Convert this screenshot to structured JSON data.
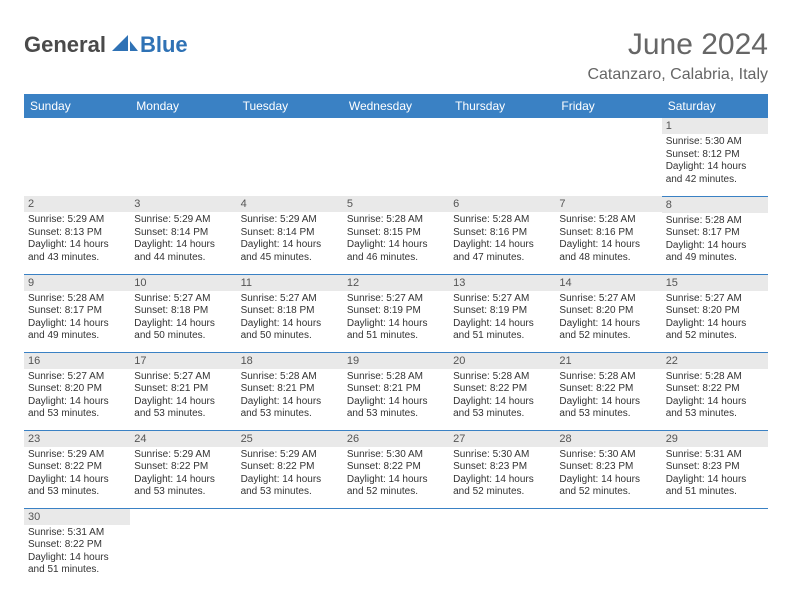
{
  "brand": {
    "part1": "General",
    "part2": "Blue"
  },
  "title": "June 2024",
  "location": "Catanzaro, Calabria, Italy",
  "colors": {
    "header_bg": "#3a81c4",
    "header_text": "#ffffff",
    "daynum_bg": "#e9e9e9",
    "cell_divider": "#3a81c4",
    "title_color": "#666666",
    "body_text": "#333333",
    "logo_dark": "#4a4a4a",
    "logo_blue": "#2f72b5"
  },
  "weekdays": [
    "Sunday",
    "Monday",
    "Tuesday",
    "Wednesday",
    "Thursday",
    "Friday",
    "Saturday"
  ],
  "labels": {
    "sunrise": "Sunrise:",
    "sunset": "Sunset:",
    "daylight": "Daylight:"
  },
  "weeks": [
    [
      null,
      null,
      null,
      null,
      null,
      null,
      {
        "d": "1",
        "sr": "5:30 AM",
        "ss": "8:12 PM",
        "dl": "14 hours and 42 minutes."
      }
    ],
    [
      {
        "d": "2",
        "sr": "5:29 AM",
        "ss": "8:13 PM",
        "dl": "14 hours and 43 minutes."
      },
      {
        "d": "3",
        "sr": "5:29 AM",
        "ss": "8:14 PM",
        "dl": "14 hours and 44 minutes."
      },
      {
        "d": "4",
        "sr": "5:29 AM",
        "ss": "8:14 PM",
        "dl": "14 hours and 45 minutes."
      },
      {
        "d": "5",
        "sr": "5:28 AM",
        "ss": "8:15 PM",
        "dl": "14 hours and 46 minutes."
      },
      {
        "d": "6",
        "sr": "5:28 AM",
        "ss": "8:16 PM",
        "dl": "14 hours and 47 minutes."
      },
      {
        "d": "7",
        "sr": "5:28 AM",
        "ss": "8:16 PM",
        "dl": "14 hours and 48 minutes."
      },
      {
        "d": "8",
        "sr": "5:28 AM",
        "ss": "8:17 PM",
        "dl": "14 hours and 49 minutes."
      }
    ],
    [
      {
        "d": "9",
        "sr": "5:28 AM",
        "ss": "8:17 PM",
        "dl": "14 hours and 49 minutes."
      },
      {
        "d": "10",
        "sr": "5:27 AM",
        "ss": "8:18 PM",
        "dl": "14 hours and 50 minutes."
      },
      {
        "d": "11",
        "sr": "5:27 AM",
        "ss": "8:18 PM",
        "dl": "14 hours and 50 minutes."
      },
      {
        "d": "12",
        "sr": "5:27 AM",
        "ss": "8:19 PM",
        "dl": "14 hours and 51 minutes."
      },
      {
        "d": "13",
        "sr": "5:27 AM",
        "ss": "8:19 PM",
        "dl": "14 hours and 51 minutes."
      },
      {
        "d": "14",
        "sr": "5:27 AM",
        "ss": "8:20 PM",
        "dl": "14 hours and 52 minutes."
      },
      {
        "d": "15",
        "sr": "5:27 AM",
        "ss": "8:20 PM",
        "dl": "14 hours and 52 minutes."
      }
    ],
    [
      {
        "d": "16",
        "sr": "5:27 AM",
        "ss": "8:20 PM",
        "dl": "14 hours and 53 minutes."
      },
      {
        "d": "17",
        "sr": "5:27 AM",
        "ss": "8:21 PM",
        "dl": "14 hours and 53 minutes."
      },
      {
        "d": "18",
        "sr": "5:28 AM",
        "ss": "8:21 PM",
        "dl": "14 hours and 53 minutes."
      },
      {
        "d": "19",
        "sr": "5:28 AM",
        "ss": "8:21 PM",
        "dl": "14 hours and 53 minutes."
      },
      {
        "d": "20",
        "sr": "5:28 AM",
        "ss": "8:22 PM",
        "dl": "14 hours and 53 minutes."
      },
      {
        "d": "21",
        "sr": "5:28 AM",
        "ss": "8:22 PM",
        "dl": "14 hours and 53 minutes."
      },
      {
        "d": "22",
        "sr": "5:28 AM",
        "ss": "8:22 PM",
        "dl": "14 hours and 53 minutes."
      }
    ],
    [
      {
        "d": "23",
        "sr": "5:29 AM",
        "ss": "8:22 PM",
        "dl": "14 hours and 53 minutes."
      },
      {
        "d": "24",
        "sr": "5:29 AM",
        "ss": "8:22 PM",
        "dl": "14 hours and 53 minutes."
      },
      {
        "d": "25",
        "sr": "5:29 AM",
        "ss": "8:22 PM",
        "dl": "14 hours and 53 minutes."
      },
      {
        "d": "26",
        "sr": "5:30 AM",
        "ss": "8:22 PM",
        "dl": "14 hours and 52 minutes."
      },
      {
        "d": "27",
        "sr": "5:30 AM",
        "ss": "8:23 PM",
        "dl": "14 hours and 52 minutes."
      },
      {
        "d": "28",
        "sr": "5:30 AM",
        "ss": "8:23 PM",
        "dl": "14 hours and 52 minutes."
      },
      {
        "d": "29",
        "sr": "5:31 AM",
        "ss": "8:23 PM",
        "dl": "14 hours and 51 minutes."
      }
    ],
    [
      {
        "d": "30",
        "sr": "5:31 AM",
        "ss": "8:22 PM",
        "dl": "14 hours and 51 minutes."
      },
      null,
      null,
      null,
      null,
      null,
      null
    ]
  ]
}
